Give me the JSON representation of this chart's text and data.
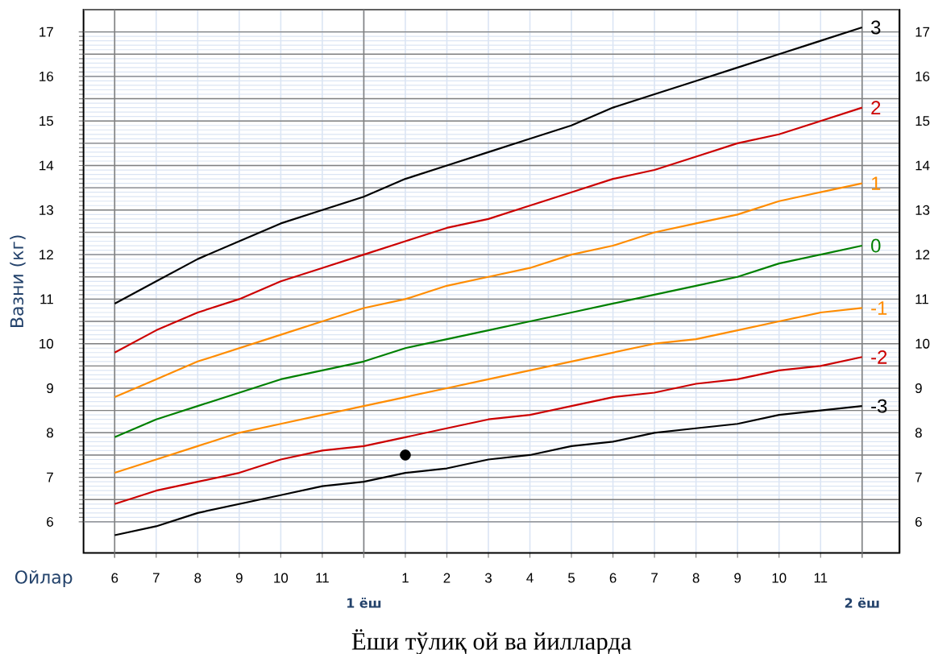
{
  "chart_data": {
    "type": "line",
    "xlabel": "Ёши тўлиқ ой ва йилларда",
    "ylabel": "Вазни (кг)",
    "annotations": [
      "Ойлар",
      "1 ёш",
      "2 ёш"
    ],
    "categories": [
      "6",
      "7",
      "8",
      "9",
      "10",
      "11",
      null,
      "1",
      "2",
      "3",
      "4",
      "5",
      "6",
      "7",
      "8",
      "9",
      "10",
      "11",
      null
    ],
    "ylim": [
      5.3,
      17.5
    ],
    "yticks": [
      6,
      7,
      8,
      9,
      10,
      11,
      12,
      13,
      14,
      15,
      16,
      17
    ],
    "y2lim": [
      5.3,
      17.5
    ],
    "y2ticks": [
      6,
      7,
      8,
      9,
      10,
      11,
      12,
      13,
      14,
      15,
      16,
      17
    ],
    "grid": true,
    "series": [
      {
        "name": "3",
        "color": "#000000",
        "values": [
          10.9,
          11.4,
          11.9,
          12.3,
          12.7,
          13.0,
          13.3,
          13.7,
          14.0,
          14.3,
          14.6,
          14.9,
          15.3,
          15.6,
          15.9,
          16.2,
          16.5,
          16.8,
          17.1
        ]
      },
      {
        "name": "2",
        "color": "#cc0000",
        "values": [
          9.8,
          10.3,
          10.7,
          11.0,
          11.4,
          11.7,
          12.0,
          12.3,
          12.6,
          12.8,
          13.1,
          13.4,
          13.7,
          13.9,
          14.2,
          14.5,
          14.7,
          15.0,
          15.3
        ]
      },
      {
        "name": "1",
        "color": "#ff8c00",
        "values": [
          8.8,
          9.2,
          9.6,
          9.9,
          10.2,
          10.5,
          10.8,
          11.0,
          11.3,
          11.5,
          11.7,
          12.0,
          12.2,
          12.5,
          12.7,
          12.9,
          13.2,
          13.4,
          13.6
        ]
      },
      {
        "name": "0",
        "color": "#008000",
        "values": [
          7.9,
          8.3,
          8.6,
          8.9,
          9.2,
          9.4,
          9.6,
          9.9,
          10.1,
          10.3,
          10.5,
          10.7,
          10.9,
          11.1,
          11.3,
          11.5,
          11.8,
          12.0,
          12.2
        ]
      },
      {
        "name": "-1",
        "color": "#ff8c00",
        "values": [
          7.1,
          7.4,
          7.7,
          8.0,
          8.2,
          8.4,
          8.6,
          8.8,
          9.0,
          9.2,
          9.4,
          9.6,
          9.8,
          10.0,
          10.1,
          10.3,
          10.5,
          10.7,
          10.8
        ]
      },
      {
        "name": "-2",
        "color": "#cc0000",
        "values": [
          6.4,
          6.7,
          6.9,
          7.1,
          7.4,
          7.6,
          7.7,
          7.9,
          8.1,
          8.3,
          8.4,
          8.6,
          8.8,
          8.9,
          9.1,
          9.2,
          9.4,
          9.5,
          9.7
        ]
      },
      {
        "name": "-3",
        "color": "#000000",
        "values": [
          5.7,
          5.9,
          6.2,
          6.4,
          6.6,
          6.8,
          6.9,
          7.1,
          7.2,
          7.4,
          7.5,
          7.7,
          7.8,
          8.0,
          8.1,
          8.2,
          8.4,
          8.5,
          8.6
        ]
      },
      {
        "type": "scatter",
        "marker": "circle",
        "color": "#000000",
        "x": [
          "1"
        ],
        "values": [
          7.5
        ]
      }
    ]
  }
}
